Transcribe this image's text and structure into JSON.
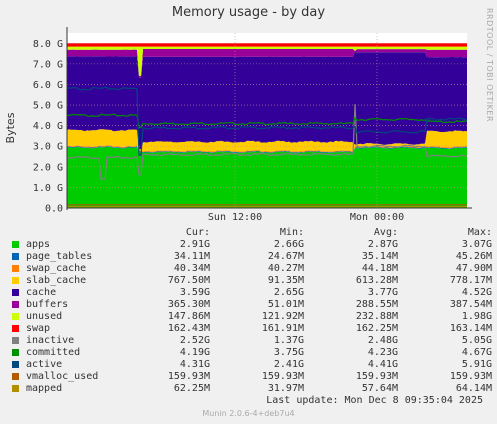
{
  "chart_data": {
    "type": "area",
    "title": "Memory usage - by day",
    "ylabel": "Bytes",
    "side_label": "RRDTOOL / TOBI OETIKER",
    "x_ticks": [
      "Sun 12:00",
      "Mon 00:00"
    ],
    "y_ticks": [
      "0.0",
      "1.0 G",
      "2.0 G",
      "3.0 G",
      "4.0 G",
      "5.0 G",
      "6.0 G",
      "7.0 G",
      "8.0 G"
    ],
    "ylim": [
      0,
      8.5
    ],
    "grid": true,
    "series": [
      {
        "name": "apps",
        "color": "#00cc00",
        "cur": "2.91G",
        "min": "2.66G",
        "avg": "2.87G",
        "max": "3.07G"
      },
      {
        "name": "page_tables",
        "color": "#0066b3",
        "cur": "34.11M",
        "min": "24.67M",
        "avg": "35.14M",
        "max": "45.26M"
      },
      {
        "name": "swap_cache",
        "color": "#ff8000",
        "cur": "40.34M",
        "min": "40.27M",
        "avg": "44.18M",
        "max": "47.90M"
      },
      {
        "name": "slab_cache",
        "color": "#ffcc00",
        "cur": "767.50M",
        "min": "91.35M",
        "avg": "613.28M",
        "max": "778.17M"
      },
      {
        "name": "cache",
        "color": "#330099",
        "cur": "3.59G",
        "min": "2.65G",
        "avg": "3.77G",
        "max": "4.52G"
      },
      {
        "name": "buffers",
        "color": "#990099",
        "cur": "365.30M",
        "min": "51.01M",
        "avg": "288.55M",
        "max": "387.54M"
      },
      {
        "name": "unused",
        "color": "#ccff00",
        "cur": "147.86M",
        "min": "121.92M",
        "avg": "232.88M",
        "max": "1.98G"
      },
      {
        "name": "swap",
        "color": "#ff0000",
        "cur": "162.43M",
        "min": "161.91M",
        "avg": "162.25M",
        "max": "163.14M"
      },
      {
        "name": "inactive",
        "color": "#808080",
        "cur": "2.52G",
        "min": "1.37G",
        "avg": "2.48G",
        "max": "5.05G"
      },
      {
        "name": "committed",
        "color": "#008f00",
        "cur": "4.19G",
        "min": "3.75G",
        "avg": "4.23G",
        "max": "4.67G"
      },
      {
        "name": "active",
        "color": "#00487d",
        "cur": "4.31G",
        "min": "2.41G",
        "avg": "4.41G",
        "max": "5.91G"
      },
      {
        "name": "vmalloc_used",
        "color": "#b35a00",
        "cur": "159.93M",
        "min": "159.93M",
        "avg": "159.93M",
        "max": "159.93M"
      },
      {
        "name": "mapped",
        "color": "#b38f00",
        "cur": "62.25M",
        "min": "31.97M",
        "avg": "57.64M",
        "max": "64.14M"
      }
    ]
  },
  "legend_headers": {
    "cur": "Cur:",
    "min": "Min:",
    "avg": "Avg:",
    "max": "Max:"
  },
  "last_update": "Last update:  Mon Dec  8 09:35:04 2025",
  "footer": "Munin 2.0.6-4+deb7u4"
}
